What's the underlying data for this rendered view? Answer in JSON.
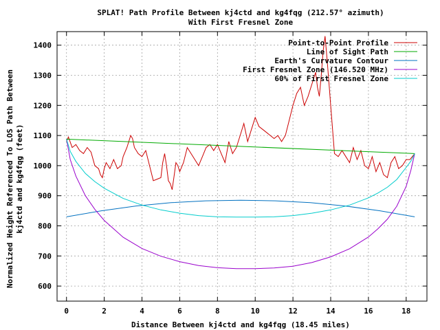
{
  "chart_data": {
    "type": "line",
    "title_line1": "SPLAT! Path Profile Between kj4ctd and kg4fqg (212.57° azimuth)",
    "title_line2": "With First Fresnel Zone",
    "xlabel": "Distance Between kj4ctd and kg4fqg (18.45 miles)",
    "ylabel_line1": "Normalized Height Referenced To LOS Path Between",
    "ylabel_line2": "kj4ctd and kg4fqg (feet)",
    "xlim": [
      -0.5,
      19.1
    ],
    "ylim": [
      550,
      1445
    ],
    "xticks": [
      0,
      2,
      4,
      6,
      8,
      10,
      12,
      14,
      16,
      18
    ],
    "yticks": [
      600,
      700,
      800,
      900,
      1000,
      1100,
      1200,
      1300,
      1400
    ],
    "grid": true,
    "legend_position": "top-right",
    "series": [
      {
        "name": "Point-to-Point Profile",
        "color": "#cc0000",
        "x": [
          0,
          0.1,
          0.3,
          0.5,
          0.7,
          0.9,
          1.1,
          1.3,
          1.5,
          1.7,
          1.8,
          1.9,
          2.0,
          2.1,
          2.3,
          2.5,
          2.7,
          2.9,
          3.0,
          3.2,
          3.4,
          3.5,
          3.6,
          3.7,
          3.8,
          4.0,
          4.2,
          4.4,
          4.6,
          4.8,
          5.0,
          5.1,
          5.2,
          5.3,
          5.4,
          5.5,
          5.6,
          5.7,
          5.8,
          5.9,
          6.0,
          6.2,
          6.4,
          6.6,
          6.8,
          7.0,
          7.2,
          7.4,
          7.6,
          7.8,
          8.0,
          8.2,
          8.4,
          8.6,
          8.8,
          9.0,
          9.2,
          9.4,
          9.6,
          9.8,
          10.0,
          10.2,
          10.4,
          10.6,
          10.8,
          11.0,
          11.2,
          11.4,
          11.6,
          11.8,
          12.0,
          12.2,
          12.4,
          12.6,
          12.8,
          13.0,
          13.2,
          13.3,
          13.4,
          13.5,
          13.6,
          13.7,
          13.8,
          13.9,
          14.0,
          14.2,
          14.4,
          14.6,
          14.8,
          15.0,
          15.2,
          15.4,
          15.6,
          15.8,
          16.0,
          16.2,
          16.4,
          16.6,
          16.8,
          17.0,
          17.2,
          17.4,
          17.6,
          17.8,
          18.0,
          18.2,
          18.45
        ],
        "values": [
          1080,
          1095,
          1060,
          1070,
          1050,
          1040,
          1060,
          1045,
          1000,
          990,
          970,
          960,
          990,
          1010,
          990,
          1020,
          990,
          1000,
          1030,
          1060,
          1100,
          1090,
          1060,
          1050,
          1040,
          1030,
          1050,
          1000,
          950,
          955,
          960,
          1010,
          1040,
          1000,
          950,
          940,
          920,
          965,
          1010,
          1000,
          980,
          1010,
          1060,
          1040,
          1020,
          1000,
          1030,
          1060,
          1070,
          1050,
          1070,
          1040,
          1010,
          1080,
          1040,
          1060,
          1100,
          1140,
          1080,
          1120,
          1160,
          1130,
          1120,
          1110,
          1100,
          1090,
          1100,
          1080,
          1100,
          1150,
          1200,
          1240,
          1260,
          1200,
          1230,
          1270,
          1310,
          1260,
          1230,
          1300,
          1380,
          1430,
          1360,
          1280,
          1200,
          1040,
          1030,
          1050,
          1030,
          1010,
          1060,
          1020,
          1050,
          1000,
          990,
          1030,
          980,
          1010,
          970,
          960,
          1010,
          1030,
          990,
          1000,
          1020,
          1020,
          1040
        ]
      },
      {
        "name": "Line of Sight Path",
        "color": "#00aa00",
        "x": [
          0,
          18.45
        ],
        "values": [
          1088,
          1040
        ]
      },
      {
        "name": "Earth's Curvature Contour",
        "color": "#0070c0",
        "x": [
          0,
          1.85,
          3.69,
          5.54,
          7.38,
          9.23,
          11.07,
          12.92,
          14.76,
          16.61,
          18.45
        ],
        "values": [
          830,
          850,
          866,
          877,
          883,
          885,
          883,
          877,
          866,
          850,
          830
        ]
      },
      {
        "name": "First Fresnel Zone (146.520 MHz)",
        "color": "#9900cc",
        "x": [
          0,
          0.2,
          0.5,
          1.0,
          1.5,
          2.0,
          3.0,
          4.0,
          5.0,
          6.0,
          7.0,
          8.0,
          9.0,
          9.5,
          10.0,
          11.0,
          12.0,
          13.0,
          14.0,
          15.0,
          16.0,
          16.5,
          17.0,
          17.5,
          18.0,
          18.25,
          18.45
        ],
        "values": [
          1088,
          1020,
          965,
          900,
          855,
          818,
          762,
          725,
          699,
          681,
          668,
          661,
          658,
          658,
          658,
          660,
          666,
          678,
          697,
          724,
          763,
          790,
          822,
          865,
          931,
          985,
          1040
        ]
      },
      {
        "name": "60% of First Fresnel Zone",
        "color": "#00cccc",
        "x": [
          0,
          0.2,
          0.5,
          1.0,
          1.5,
          2.0,
          3.0,
          4.0,
          5.0,
          6.0,
          7.0,
          8.0,
          9.0,
          9.5,
          10.0,
          11.0,
          12.0,
          13.0,
          14.0,
          15.0,
          16.0,
          16.5,
          17.0,
          17.5,
          18.0,
          18.25,
          18.45
        ],
        "values": [
          1088,
          1047,
          1014,
          974,
          947,
          925,
          891,
          869,
          853,
          842,
          834,
          830,
          829,
          829,
          829,
          830,
          834,
          842,
          853,
          869,
          893,
          909,
          928,
          954,
          994,
          1015,
          1040
        ]
      }
    ]
  }
}
